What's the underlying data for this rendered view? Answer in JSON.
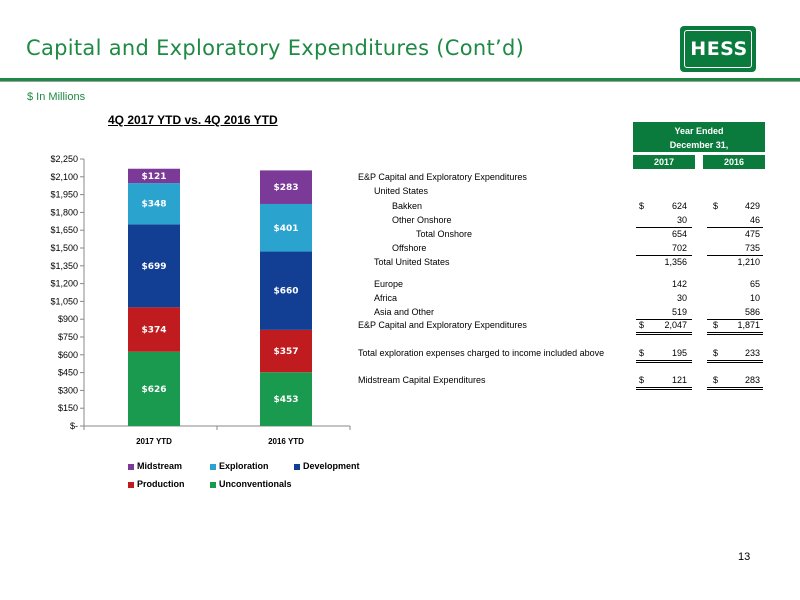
{
  "header": {
    "title": "Capital and Exploratory Expenditures (Cont’d)",
    "logo_text": "HESS",
    "units": "$ In Millions"
  },
  "colors": {
    "brand_green": "#1f8a44",
    "table_header": "#0b7a3d"
  },
  "chart_data": {
    "type": "bar",
    "stacked": true,
    "title": "4Q 2017 YTD vs. 4Q 2016 YTD",
    "categories": [
      "2017 YTD",
      "2016 YTD"
    ],
    "series": [
      {
        "name": "Unconventionals",
        "color": "#1a9a4f",
        "values": [
          626,
          453
        ],
        "labels": [
          "$626",
          "$453"
        ]
      },
      {
        "name": "Production",
        "color": "#c01b1f",
        "values": [
          374,
          357
        ],
        "labels": [
          "$374",
          "$357"
        ]
      },
      {
        "name": "Development",
        "color": "#123f93",
        "values": [
          699,
          660
        ],
        "labels": [
          "$699",
          "$660"
        ]
      },
      {
        "name": "Exploration",
        "color": "#2ba3cf",
        "values": [
          348,
          401
        ],
        "labels": [
          "$348",
          "$401"
        ]
      },
      {
        "name": "Midstream",
        "color": "#7b3a97",
        "values": [
          121,
          283
        ],
        "labels": [
          "$121",
          "$283"
        ]
      }
    ],
    "ylim": [
      0,
      2250
    ],
    "yticks": [
      0,
      150,
      300,
      450,
      600,
      750,
      900,
      1050,
      1200,
      1350,
      1500,
      1650,
      1800,
      1950,
      2100,
      2250
    ],
    "ytick_labels": [
      "$-",
      "$150",
      "$300",
      "$450",
      "$600",
      "$750",
      "$900",
      "$1,050",
      "$1,200",
      "$1,350",
      "$1,500",
      "$1,650",
      "$1,800",
      "$1,950",
      "$2,100",
      "$2,250"
    ],
    "grid": false,
    "legend_position": "bottom",
    "legend_order": [
      "Midstream",
      "Exploration",
      "Development",
      "Production",
      "Unconventionals"
    ]
  },
  "table": {
    "header_line1": "Year Ended",
    "header_line2": "December 31,",
    "columns": [
      "2017",
      "2016"
    ],
    "rows": [
      {
        "label": "E&P Capital and Exploratory Expenditures",
        "indent": 0,
        "v2017": "",
        "v2016": ""
      },
      {
        "label": "United States",
        "indent": 1,
        "v2017": "",
        "v2016": ""
      },
      {
        "label": "Bakken",
        "indent": 2,
        "v2017": "624",
        "v2016": "429",
        "dollar": true
      },
      {
        "label": "Other Onshore",
        "indent": 2,
        "v2017": "30",
        "v2016": "46",
        "underline": true
      },
      {
        "label": "Total Onshore",
        "indent": 3,
        "v2017": "654",
        "v2016": "475"
      },
      {
        "label": "Offshore",
        "indent": 2,
        "v2017": "702",
        "v2016": "735",
        "underline": true
      },
      {
        "label": "Total United States",
        "indent": 1,
        "v2017": "1,356",
        "v2016": "1,210"
      },
      {
        "label": "Europe",
        "indent": 1,
        "v2017": "142",
        "v2016": "65"
      },
      {
        "label": "Africa",
        "indent": 1,
        "v2017": "30",
        "v2016": "10"
      },
      {
        "label": "Asia and Other",
        "indent": 1,
        "v2017": "519",
        "v2016": "586",
        "underline": true
      },
      {
        "label": "E&P Capital and Exploratory Expenditures",
        "indent": 0,
        "v2017": "2,047",
        "v2016": "1,871",
        "dollar": true,
        "double": true
      },
      {
        "label": "Total exploration expenses charged to income included above",
        "indent": 0,
        "v2017": "195",
        "v2016": "233",
        "dollar": true,
        "double": true
      },
      {
        "label": "Midstream Capital Expenditures",
        "indent": 0,
        "v2017": "121",
        "v2016": "283",
        "dollar": true,
        "double": true
      }
    ],
    "dollar_sign": "$"
  },
  "footer": {
    "page_number": "13"
  }
}
